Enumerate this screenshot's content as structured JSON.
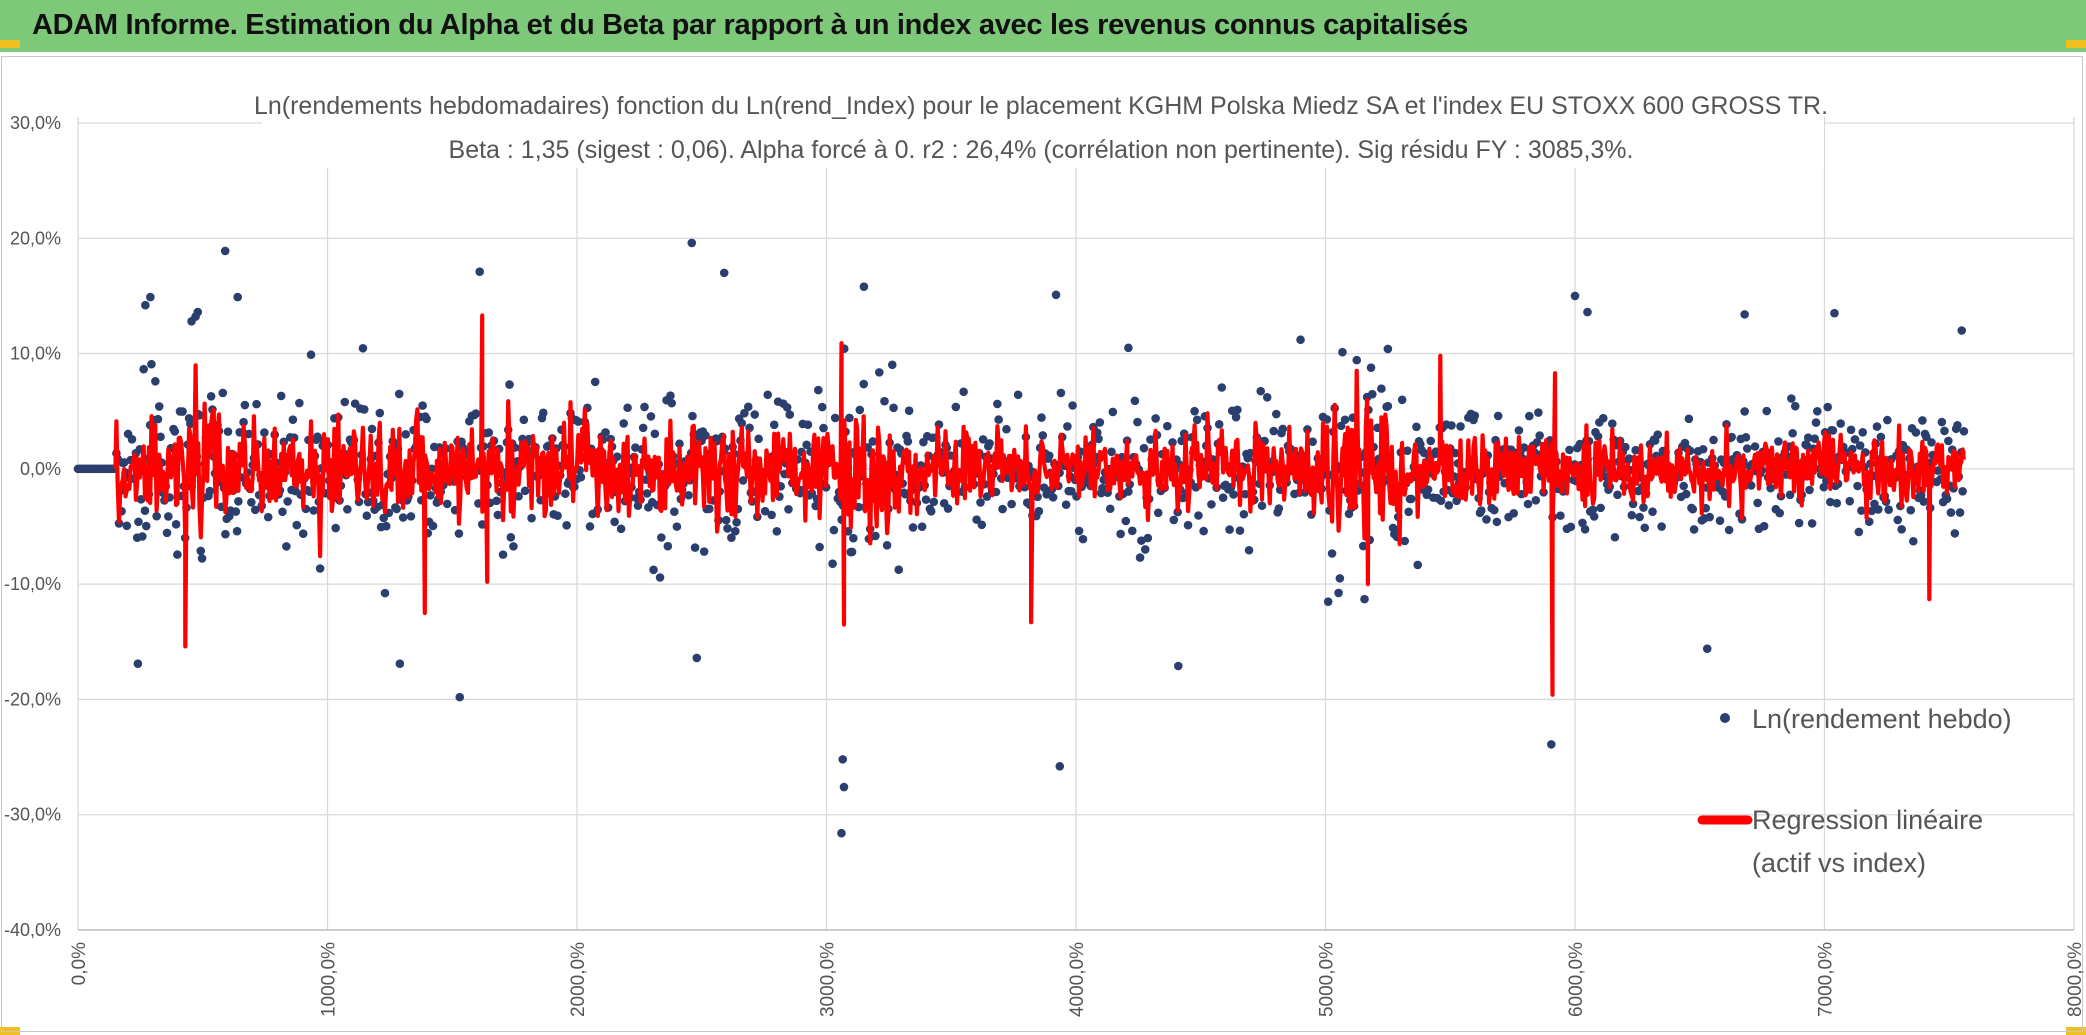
{
  "header": {
    "title": "ADAM Informe. Estimation du Alpha et du Beta par rapport à un index avec les revenus connus capitalisés",
    "background": "#7ec87a"
  },
  "chart_data": {
    "type": "scatter",
    "title": "Ln(rendements hebdomadaires) fonction du Ln(rend_Index) pour le placement KGHM Polska Miedz SA et l'index EU STOXX 600 GROSS TR.",
    "subtitle": "Beta : 1,35 (sigest : 0,06). Alpha forcé à 0. r2 : 26,4% (corrélation non pertinente). Sig résidu FY : 3085,3%.",
    "xlabel": "",
    "ylabel": "",
    "ylim": [
      -40,
      30
    ],
    "xlim": [
      0,
      8000
    ],
    "y_ticks": [
      {
        "value": 30,
        "label": "30,0%"
      },
      {
        "value": 20,
        "label": "20,0%"
      },
      {
        "value": 10,
        "label": "10,0%"
      },
      {
        "value": 0,
        "label": "0,0%"
      },
      {
        "value": -10,
        "label": "-10,0%"
      },
      {
        "value": -20,
        "label": "-20,0%"
      },
      {
        "value": -30,
        "label": "-30,0%"
      },
      {
        "value": -40,
        "label": "-40,0%"
      }
    ],
    "x_ticks": [
      {
        "value": 0,
        "label": "0,0%"
      },
      {
        "value": 1000,
        "label": "1000,0%"
      },
      {
        "value": 2000,
        "label": "2000,0%"
      },
      {
        "value": 3000,
        "label": "3000,0%"
      },
      {
        "value": 4000,
        "label": "4000,0%"
      },
      {
        "value": 5000,
        "label": "5000,0%"
      },
      {
        "value": 6000,
        "label": "6000,0%"
      },
      {
        "value": 7000,
        "label": "7000,0%"
      },
      {
        "value": 8000,
        "label": "8000,0%"
      }
    ],
    "grid": true,
    "legend_position": "right",
    "series": [
      {
        "name": "Ln(rendement hebdo)",
        "kind": "scatter",
        "color": "#2a3f6e",
        "x_range": [
          0,
          7560
        ],
        "zero_segment_end": 150,
        "volatility_regimes": [
          {
            "x": [
              150,
              600
            ],
            "sd": 5.5
          },
          {
            "x": [
              600,
              2000
            ],
            "sd": 4.2
          },
          {
            "x": [
              2000,
              3000
            ],
            "sd": 4.0
          },
          {
            "x": [
              3000,
              3300
            ],
            "sd": 6.0
          },
          {
            "x": [
              3300,
              5000
            ],
            "sd": 3.6
          },
          {
            "x": [
              5000,
              5300
            ],
            "sd": 5.5
          },
          {
            "x": [
              5300,
              7560
            ],
            "sd": 3.4
          }
        ],
        "outliers": [
          {
            "x": 240,
            "y": -16.9
          },
          {
            "x": 270,
            "y": 14.2
          },
          {
            "x": 290,
            "y": 14.9
          },
          {
            "x": 455,
            "y": 12.8
          },
          {
            "x": 480,
            "y": 13.6
          },
          {
            "x": 590,
            "y": 18.9
          },
          {
            "x": 640,
            "y": 14.9
          },
          {
            "x": 1290,
            "y": -16.9
          },
          {
            "x": 1530,
            "y": -19.8
          },
          {
            "x": 1610,
            "y": 17.1
          },
          {
            "x": 2460,
            "y": 19.6
          },
          {
            "x": 2480,
            "y": -16.4
          },
          {
            "x": 2590,
            "y": 17.0
          },
          {
            "x": 3060,
            "y": -31.6
          },
          {
            "x": 3070,
            "y": -27.6
          },
          {
            "x": 3065,
            "y": -25.2
          },
          {
            "x": 3150,
            "y": 15.8
          },
          {
            "x": 3935,
            "y": -25.8
          },
          {
            "x": 3920,
            "y": 15.1
          },
          {
            "x": 4410,
            "y": -17.1
          },
          {
            "x": 5905,
            "y": -23.9
          },
          {
            "x": 6530,
            "y": -15.6
          },
          {
            "x": 7550,
            "y": 12.0
          },
          {
            "x": 6050,
            "y": 13.6
          },
          {
            "x": 6000,
            "y": 15.0
          },
          {
            "x": 6680,
            "y": 13.4
          },
          {
            "x": 7040,
            "y": 13.5
          },
          {
            "x": 4900,
            "y": 11.2
          },
          {
            "x": 5250,
            "y": 10.4
          },
          {
            "x": 4210,
            "y": 10.5
          }
        ]
      },
      {
        "name": "Regression linéaire",
        "name_line2": "(actif vs index)",
        "kind": "line",
        "color": "#ff0000",
        "beta": 1.35,
        "spikes": [
          {
            "x": 430,
            "y": -15.4
          },
          {
            "x": 1390,
            "y": -12.5
          },
          {
            "x": 1620,
            "y": 13.3
          },
          {
            "x": 3060,
            "y": 10.9
          },
          {
            "x": 3070,
            "y": -13.5
          },
          {
            "x": 3820,
            "y": -13.3
          },
          {
            "x": 5460,
            "y": 9.8
          },
          {
            "x": 5910,
            "y": -19.6
          },
          {
            "x": 5920,
            "y": 8.3
          },
          {
            "x": 7420,
            "y": -11.3
          },
          {
            "x": 5170,
            "y": -10.0
          },
          {
            "x": 1640,
            "y": -9.8
          }
        ]
      }
    ]
  }
}
